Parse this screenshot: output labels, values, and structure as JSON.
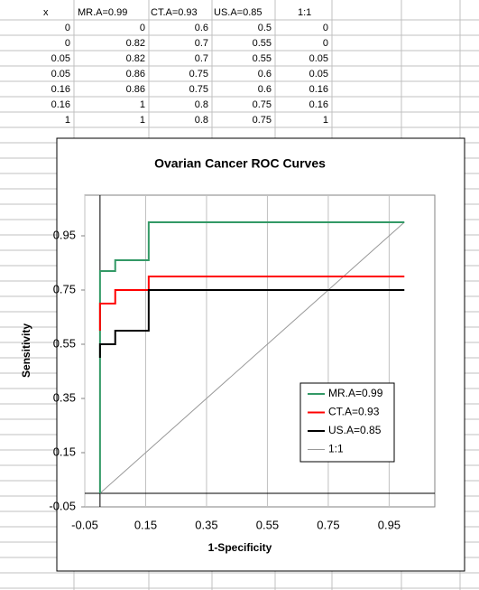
{
  "sheet": {
    "columns": [
      "x",
      "MR.A=0.99",
      "CT.A=0.93",
      "US.A=0.85",
      "1:1"
    ],
    "rows": [
      [
        0,
        0,
        0.6,
        0.5,
        0
      ],
      [
        0,
        0.82,
        0.7,
        0.55,
        0
      ],
      [
        0.05,
        0.82,
        0.7,
        0.55,
        0.05
      ],
      [
        0.05,
        0.86,
        0.75,
        0.6,
        0.05
      ],
      [
        0.16,
        0.86,
        0.75,
        0.6,
        0.16
      ],
      [
        0.16,
        1,
        0.8,
        0.75,
        0.16
      ],
      [
        1,
        1,
        0.8,
        0.75,
        1
      ]
    ]
  },
  "chart_data": {
    "type": "line",
    "title": "Ovarian Cancer ROC Curves",
    "x_label": "1-Specificity",
    "y_label": "Sensitivity",
    "x": [
      0,
      0,
      0.05,
      0.05,
      0.16,
      0.16,
      1
    ],
    "series": [
      {
        "name": "MR.A=0.99",
        "color": "#339966",
        "values": [
          0,
          0.82,
          0.82,
          0.86,
          0.86,
          1,
          1
        ]
      },
      {
        "name": "CT.A=0.93",
        "color": "#ff0000",
        "values": [
          0.6,
          0.7,
          0.7,
          0.75,
          0.75,
          0.8,
          0.8
        ]
      },
      {
        "name": "US.A=0.85",
        "color": "#000000",
        "values": [
          0.5,
          0.55,
          0.55,
          0.6,
          0.6,
          0.75,
          0.75
        ]
      },
      {
        "name": "1:1",
        "color": "#999999",
        "values": [
          0,
          0,
          0.05,
          0.05,
          0.16,
          0.16,
          1
        ]
      }
    ],
    "xlim": [
      -0.05,
      1.1
    ],
    "ylim": [
      -0.05,
      1.1
    ],
    "xticks": [
      -0.05,
      0.15,
      0.35,
      0.55,
      0.75,
      0.95
    ],
    "yticks": [
      -0.05,
      0.15,
      0.35,
      0.55,
      0.75,
      0.95
    ],
    "grid": true,
    "legend": "lower right"
  }
}
